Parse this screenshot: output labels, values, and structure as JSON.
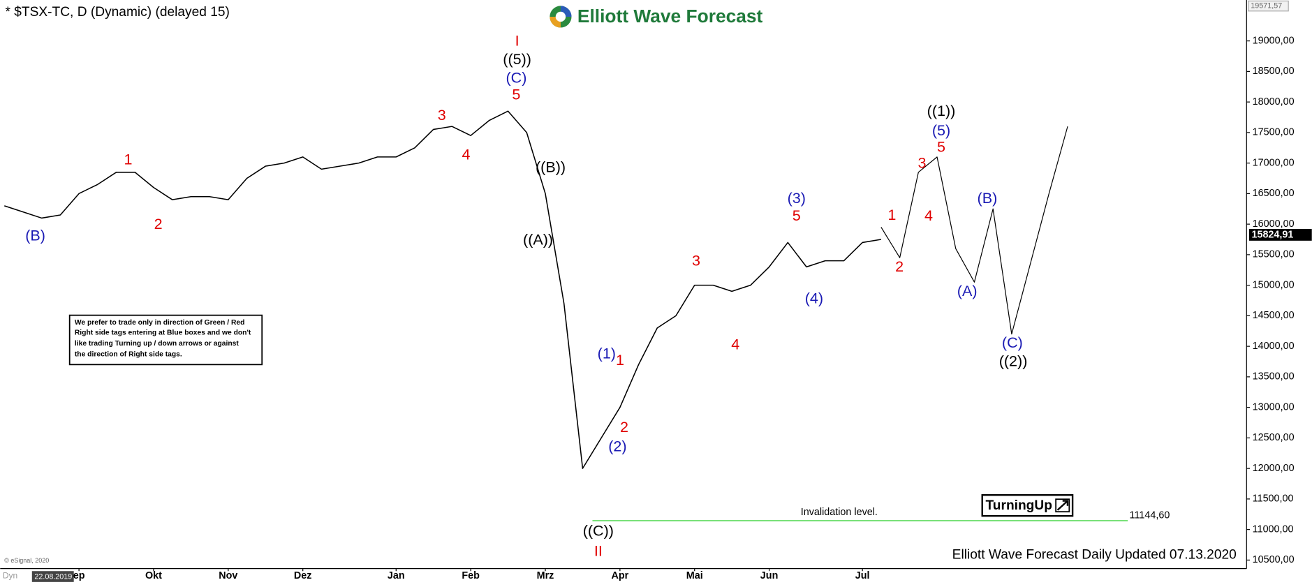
{
  "chart_data": {
    "type": "line",
    "title": "* $TSX-TC, D (Dynamic) (delayed 15)",
    "categories": [
      null,
      null,
      null,
      null,
      "ep",
      null,
      null,
      null,
      "Okt",
      null,
      null,
      null,
      "Nov",
      null,
      null,
      null,
      "Dez",
      null,
      null,
      null,
      null,
      "Jan",
      null,
      null,
      null,
      "Feb",
      null,
      null,
      null,
      "Mrz",
      null,
      null,
      null,
      "Apr",
      null,
      null,
      null,
      "Mai",
      null,
      null,
      null,
      "Jun",
      null,
      null,
      null,
      null,
      "Jul",
      null,
      null,
      null,
      null,
      null,
      null,
      null,
      null,
      null,
      null,
      null
    ],
    "series": [
      {
        "color": "#000000",
        "values": [
          16300,
          16200,
          16100,
          16150,
          16500,
          16650,
          16850,
          16850,
          16600,
          16400,
          16450,
          16450,
          16400,
          16750,
          16950,
          17000,
          17100,
          16900,
          16950,
          17000,
          17100,
          17100,
          17250,
          17550,
          17600,
          17450,
          17700,
          17850,
          17500,
          16500,
          14700,
          12000,
          12500,
          13000,
          13700,
          14300,
          14500,
          15000,
          15000,
          14900,
          15000,
          15300,
          15700,
          15300,
          15400,
          15400,
          15700,
          15750,
          null,
          null,
          null,
          null,
          null,
          null,
          null,
          null,
          null,
          null
        ]
      },
      {
        "color": "#000000",
        "values": [
          null,
          null,
          null,
          null,
          null,
          null,
          null,
          null,
          null,
          null,
          null,
          null,
          null,
          null,
          null,
          null,
          null,
          null,
          null,
          null,
          null,
          null,
          null,
          null,
          null,
          null,
          null,
          null,
          null,
          null,
          null,
          null,
          null,
          null,
          null,
          null,
          null,
          null,
          null,
          null,
          null,
          null,
          null,
          null,
          null,
          null,
          null,
          15950,
          15450,
          16850,
          17100,
          15600,
          15050,
          16250,
          14200,
          15350,
          16500,
          17600
        ]
      }
    ],
    "ylim": [
      10360,
      19670
    ],
    "yticks": [
      {
        "value": 10500,
        "label": "10500,00"
      },
      {
        "value": 11000,
        "label": "11000,00"
      },
      {
        "value": 11500,
        "label": "11500,00"
      },
      {
        "value": 12000,
        "label": "12000,00"
      },
      {
        "value": 12500,
        "label": "12500,00"
      },
      {
        "value": 13000,
        "label": "13000,00"
      },
      {
        "value": 13500,
        "label": "13500,00"
      },
      {
        "value": 14000,
        "label": "14000,00"
      },
      {
        "value": 14500,
        "label": "14500,00"
      },
      {
        "value": 15000,
        "label": "15000,00"
      },
      {
        "value": 15500,
        "label": "15500,00"
      },
      {
        "value": 16000,
        "label": "16000,00"
      },
      {
        "value": 16500,
        "label": "16500,00"
      },
      {
        "value": 17000,
        "label": "17000,00"
      },
      {
        "value": 17500,
        "label": "17500,00"
      },
      {
        "value": 18000,
        "label": "18000,00"
      },
      {
        "value": 18500,
        "label": "18500,00"
      },
      {
        "value": 19000,
        "label": "19000,00"
      }
    ],
    "grid": false,
    "scale_top": {
      "value": 19571.57,
      "label": "19571,57"
    },
    "current_price": {
      "value": 15824.91,
      "label": "15824,91"
    },
    "invalidation": {
      "text": "Invalidation level.",
      "value": 11144.6,
      "value_label": "11144,60",
      "color": "#66dd66"
    },
    "annotations": [
      {
        "text": "(B)",
        "color": "#1a1ab4"
      },
      {
        "text": "1",
        "color": "#e00000"
      },
      {
        "text": "2",
        "color": "#e00000"
      },
      {
        "text": "3",
        "color": "#e00000"
      },
      {
        "text": "4",
        "color": "#e00000"
      },
      {
        "text": "5",
        "color": "#e00000"
      },
      {
        "text": "(C)",
        "color": "#1a1ab4"
      },
      {
        "text": "((5))",
        "color": "#000000"
      },
      {
        "text": "I",
        "color": "#e00000"
      },
      {
        "text": "((B))",
        "color": "#000000"
      },
      {
        "text": "((A))",
        "color": "#000000"
      },
      {
        "text": "(1)",
        "color": "#1a1ab4"
      },
      {
        "text": "1",
        "color": "#e00000"
      },
      {
        "text": "2",
        "color": "#e00000"
      },
      {
        "text": "(2)",
        "color": "#1a1ab4"
      },
      {
        "text": "((C))",
        "color": "#000000"
      },
      {
        "text": "II",
        "color": "#e00000"
      },
      {
        "text": "3",
        "color": "#e00000"
      },
      {
        "text": "4",
        "color": "#e00000"
      },
      {
        "text": "(3)",
        "color": "#1a1ab4"
      },
      {
        "text": "5",
        "color": "#e00000"
      },
      {
        "text": "(4)",
        "color": "#1a1ab4"
      },
      {
        "text": "1",
        "color": "#e00000"
      },
      {
        "text": "2",
        "color": "#e00000"
      },
      {
        "text": "3",
        "color": "#e00000"
      },
      {
        "text": "4",
        "color": "#e00000"
      },
      {
        "text": "5",
        "color": "#e00000"
      },
      {
        "text": "(5)",
        "color": "#1a1ab4"
      },
      {
        "text": "((1))",
        "color": "#000000"
      },
      {
        "text": "(B)",
        "color": "#1a1ab4"
      },
      {
        "text": "(A)",
        "color": "#1a1ab4"
      },
      {
        "text": "(C)",
        "color": "#1a1ab4"
      },
      {
        "text": "((2))",
        "color": "#000000"
      }
    ]
  },
  "logo": "Elliott Wave Forecast",
  "note": [
    "We prefer to trade only in direction of Green / Red",
    "Right side tags entering at Blue boxes and we don't",
    "like trading Turning up / down arrows or against",
    "the direction of Right side tags."
  ],
  "badge": "TurningUp",
  "footer": "Elliott Wave Forecast Daily Updated 07.13.2020",
  "copyright": "© eSignal, 2020",
  "toolbar": {
    "mode": "Dyn",
    "date": "22.08.2019"
  }
}
